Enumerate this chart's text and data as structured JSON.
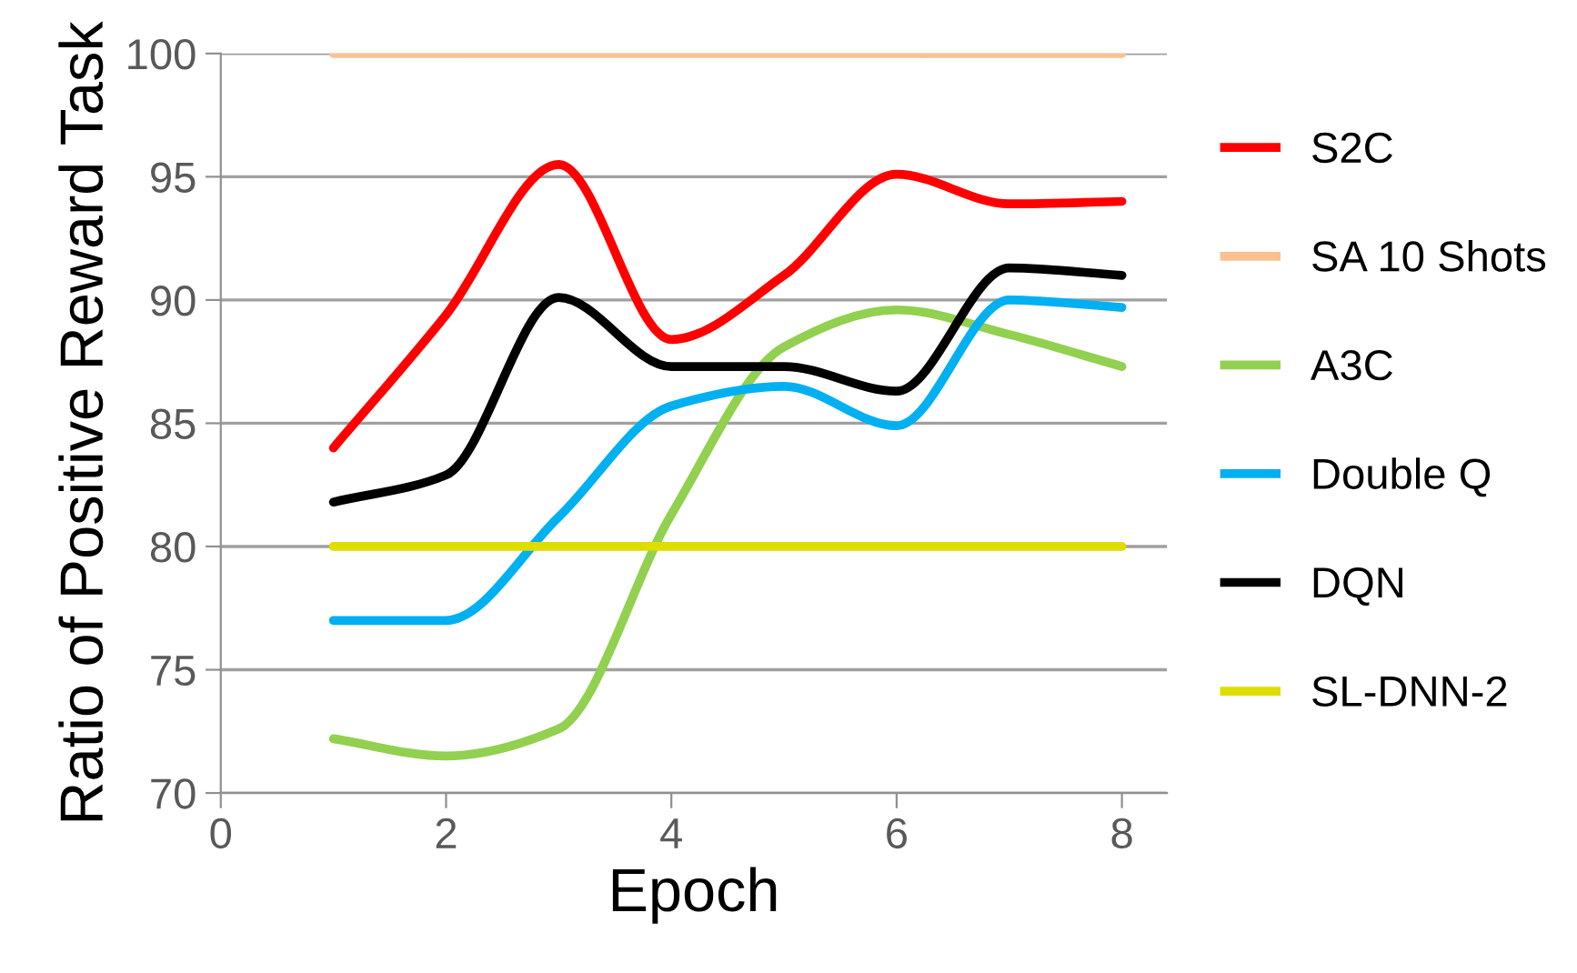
{
  "chart_data": {
    "type": "line",
    "xlabel": "Epoch",
    "ylabel": "Ratio of Positive Reward Task",
    "x": [
      1,
      2,
      3,
      4,
      5,
      6,
      7,
      8
    ],
    "series": [
      {
        "name": "S2C",
        "color": "#ff0000",
        "values": [
          84.0,
          89.4,
          95.5,
          88.4,
          91.0,
          95.1,
          93.9,
          94.0
        ]
      },
      {
        "name": "SA 10 Shots",
        "color": "#fac090",
        "values": [
          100,
          100,
          100,
          100,
          100,
          100,
          100,
          100
        ]
      },
      {
        "name": "A3C",
        "color": "#92d050",
        "values": [
          72.2,
          71.5,
          72.6,
          81.3,
          88.1,
          89.6,
          88.6,
          87.3
        ]
      },
      {
        "name": "Double Q",
        "color": "#00b0f0",
        "values": [
          77.0,
          77.0,
          81.2,
          85.7,
          86.5,
          84.9,
          90.0,
          89.7
        ]
      },
      {
        "name": "DQN",
        "color": "#000000",
        "values": [
          81.8,
          82.9,
          90.1,
          87.3,
          87.3,
          86.3,
          91.3,
          91.0
        ]
      },
      {
        "name": "SL-DNN-2",
        "color": "#dddd00",
        "values": [
          80,
          80,
          80,
          80,
          80,
          80,
          80,
          80
        ]
      }
    ],
    "xlim": [
      0,
      8.4
    ],
    "ylim": [
      70,
      100
    ],
    "xticks": [
      0,
      2,
      4,
      6,
      8
    ],
    "yticks": [
      70,
      75,
      80,
      85,
      90,
      95,
      100
    ],
    "grid": "y",
    "legend": "right",
    "marker": "none",
    "line_style": "solid"
  }
}
